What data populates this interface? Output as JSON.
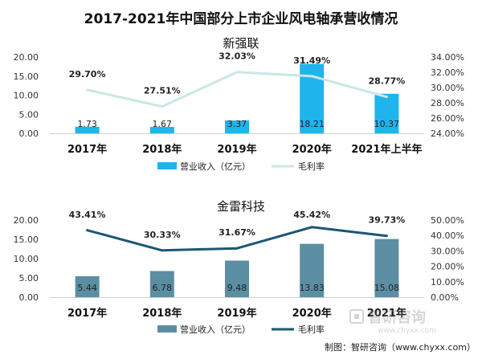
{
  "page": {
    "title": "2017-2021年中国部分上市企业风电轴承营收情况",
    "footer": "制图：智研咨询（www.chyxx.com）",
    "watermark": {
      "brand": "智研咨询",
      "url": "www.chyxx.com"
    }
  },
  "chart_data": [
    {
      "type": "bar+line",
      "title": "新强联",
      "categories": [
        "2017年",
        "2018年",
        "2019年",
        "2020年",
        "2021年上半年"
      ],
      "left_axis": {
        "ticks": [
          "20.00",
          "15.00",
          "10.00",
          "5.00",
          "0.00"
        ],
        "range": [
          0,
          20
        ]
      },
      "right_axis": {
        "ticks": [
          "34.00%",
          "32.00%",
          "30.00%",
          "28.00%",
          "26.00%",
          "24.00%"
        ],
        "range": [
          24,
          34
        ]
      },
      "series": [
        {
          "name": "营业收入（亿元）",
          "type": "bar",
          "values": [
            1.73,
            1.67,
            3.37,
            18.21,
            10.37
          ],
          "labels": [
            "1.73",
            "1.67",
            "3.37",
            "18.21",
            "10.37"
          ]
        },
        {
          "name": "毛利率",
          "type": "line",
          "values": [
            29.7,
            27.51,
            32.03,
            31.49,
            28.77
          ],
          "labels": [
            "29.70%",
            "27.51%",
            "32.03%",
            "31.49%",
            "28.77%"
          ]
        }
      ],
      "colors": {
        "bar": "#1fb4ec",
        "line": "#c9e7e6"
      },
      "legend": "bottom"
    },
    {
      "type": "bar+line",
      "title": "金雷科技",
      "categories": [
        "2017年",
        "2018年",
        "2019年",
        "2020年",
        "2021年"
      ],
      "left_axis": {
        "ticks": [
          "20.00",
          "15.00",
          "10.00",
          "5.00",
          "0.00"
        ],
        "range": [
          0,
          20
        ]
      },
      "right_axis": {
        "ticks": [
          "50.00%",
          "40.00%",
          "30.00%",
          "20.00%",
          "10.00%",
          "0.00%"
        ],
        "range": [
          0,
          50
        ]
      },
      "series": [
        {
          "name": "营业收入（亿元）",
          "type": "bar",
          "values": [
            5.44,
            6.78,
            9.48,
            13.83,
            15.08
          ],
          "labels": [
            "5.44",
            "6.78",
            "9.48",
            "13.83",
            "15.08"
          ]
        },
        {
          "name": "毛利率",
          "type": "line",
          "values": [
            43.41,
            30.33,
            31.67,
            45.42,
            39.73
          ],
          "labels": [
            "43.41%",
            "30.33%",
            "31.67%",
            "45.42%",
            "39.73%"
          ]
        }
      ],
      "colors": {
        "bar": "#5b8ea3",
        "line": "#1b5775"
      },
      "legend": "bottom"
    }
  ]
}
